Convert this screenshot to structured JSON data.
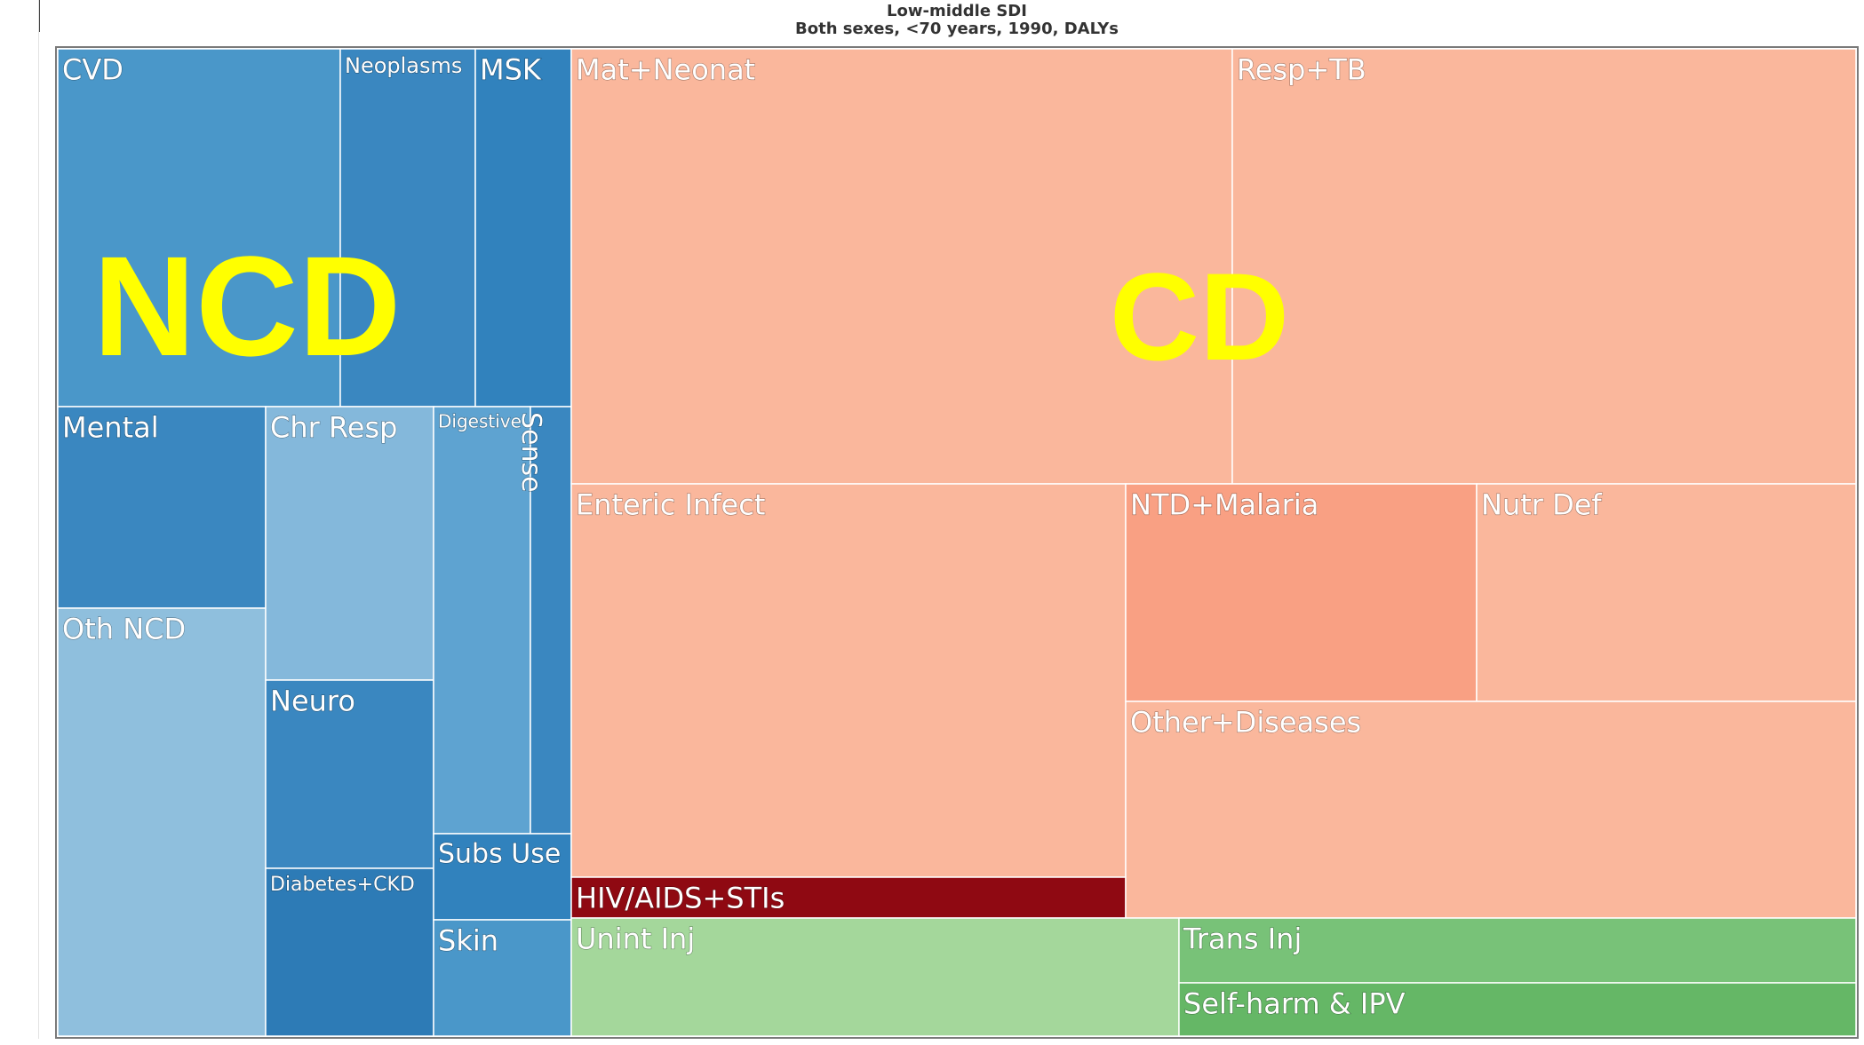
{
  "title": "Low-middle SDI",
  "subtitle": "Both sexes, <70 years, 1990, DALYs",
  "chart_data": {
    "type": "treemap",
    "title": "Low-middle SDI",
    "subtitle": "Both sexes, <70 years, 1990, DALYs",
    "groups": [
      {
        "label": "NCD",
        "label_color": "#ffff00",
        "cells": [
          {
            "name": "CVD",
            "value": 7.3,
            "color": "#4a97c9"
          },
          {
            "name": "Neoplasms",
            "value": 3.5,
            "color": "#3a87c0"
          },
          {
            "name": "MSK",
            "value": 2.4,
            "color": "#3182bd"
          },
          {
            "name": "Mental",
            "value": 3.0,
            "color": "#3a87c0"
          },
          {
            "name": "Oth NCD",
            "value": 6.3,
            "color": "#8fbfdd"
          },
          {
            "name": "Chr Resp",
            "value": 3.4,
            "color": "#84b8db"
          },
          {
            "name": "Neuro",
            "value": 2.3,
            "color": "#3a87c0"
          },
          {
            "name": "Diabetes+CKD",
            "value": 2.1,
            "color": "#2d7bb6"
          },
          {
            "name": "Digestive",
            "value": 2.9,
            "color": "#5ea3d1"
          },
          {
            "name": "Sense",
            "value": 1.3,
            "color": "#3a87c0"
          },
          {
            "name": "Subs Use",
            "value": 0.9,
            "color": "#3182bd"
          },
          {
            "name": "Skin",
            "value": 1.3,
            "color": "#4a97c9"
          }
        ]
      },
      {
        "label": "CD",
        "label_color": "#ffff00",
        "cells": [
          {
            "name": "Mat+Neonat",
            "value": 20.2,
            "color": "#fab79c"
          },
          {
            "name": "Resp+TB",
            "value": 19.1,
            "color": "#fab79c"
          },
          {
            "name": "Enteric Infect",
            "value": 15.3,
            "color": "#fab79c"
          },
          {
            "name": "HIV/AIDS+STIs",
            "value": 1.1,
            "color": "#8f0912"
          },
          {
            "name": "NTD+Malaria",
            "value": 5.4,
            "color": "#f9a083"
          },
          {
            "name": "Nutr Def",
            "value": 5.6,
            "color": "#fab79c"
          },
          {
            "name": "Other+Diseases",
            "value": 11.2,
            "color": "#fab79c"
          }
        ]
      },
      {
        "label": "",
        "cells": [
          {
            "name": "Unint Inj",
            "value": 4.9,
            "color": "#a4d79b"
          },
          {
            "name": "Trans Inj",
            "value": 2.4,
            "color": "#78c278"
          },
          {
            "name": "Self-harm & IPV",
            "value": 2.0,
            "color": "#65b766"
          }
        ]
      }
    ]
  }
}
